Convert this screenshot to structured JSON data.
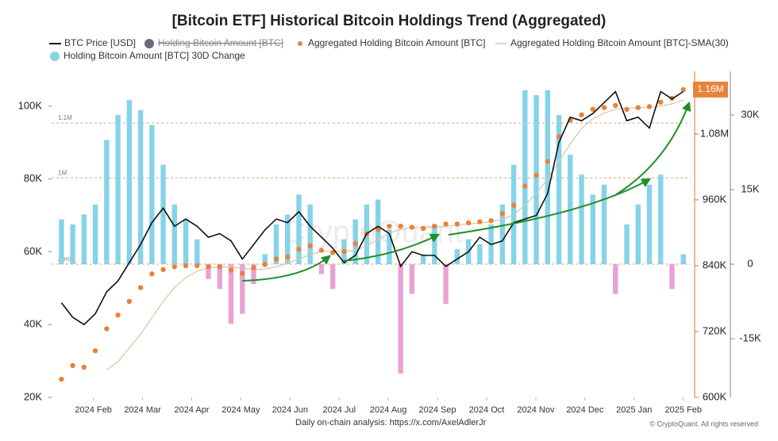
{
  "chart_data": {
    "type": "combo",
    "title": "[Bitcoin ETF] Historical Bitcoin Holdings Trend (Aggregated)",
    "x": [
      0.35,
      0.58,
      0.81,
      1.04,
      1.27,
      1.5,
      1.73,
      1.96,
      2.19,
      2.42,
      2.65,
      2.88,
      3.11,
      3.34,
      3.57,
      3.8,
      4.03,
      4.26,
      4.49,
      4.72,
      4.95,
      5.18,
      5.41,
      5.64,
      5.87,
      6.1,
      6.33,
      6.56,
      6.79,
      7.02,
      7.25,
      7.48,
      7.71,
      7.94,
      8.17,
      8.4,
      8.63,
      8.86,
      9.09,
      9.32,
      9.55,
      9.78,
      10.01,
      10.24,
      10.47,
      10.7,
      10.93,
      11.16,
      11.39,
      11.62,
      11.85,
      12.08,
      12.31,
      12.54,
      12.77,
      13.0
    ],
    "xlim": [
      0.15,
      13.15
    ],
    "xticks": [
      {
        "value": 1,
        "label": "2024 Feb"
      },
      {
        "value": 2,
        "label": "2024 Mar"
      },
      {
        "value": 3,
        "label": "2024 Apr"
      },
      {
        "value": 4,
        "label": "2024 May"
      },
      {
        "value": 5,
        "label": "2024 Jun"
      },
      {
        "value": 6,
        "label": "2024 Jul"
      },
      {
        "value": 7,
        "label": "2024 Aug"
      },
      {
        "value": 8,
        "label": "2024 Sep"
      },
      {
        "value": 9,
        "label": "2024 Oct"
      },
      {
        "value": 10,
        "label": "2024 Nov"
      },
      {
        "value": 11,
        "label": "2024 Dec"
      },
      {
        "value": 12,
        "label": "2025 Jan"
      },
      {
        "value": 13,
        "label": "2025 Feb"
      }
    ],
    "ylim": [
      20000,
      110000
    ],
    "yticks": [
      {
        "value": 20000,
        "label": "20K"
      },
      {
        "value": 40000,
        "label": "40K"
      },
      {
        "value": 60000,
        "label": "60K"
      },
      {
        "value": 80000,
        "label": "80K"
      },
      {
        "value": 100000,
        "label": "100K"
      }
    ],
    "y2lim": [
      600000,
      1197000
    ],
    "y2ticks": [
      {
        "value": 600000,
        "label": "600K"
      },
      {
        "value": 720000,
        "label": "720K"
      },
      {
        "value": 840000,
        "label": "840K"
      },
      {
        "value": 960000,
        "label": "960K"
      },
      {
        "value": 1080000,
        "label": "1.08M"
      }
    ],
    "y3lim": [
      -26800,
      39100
    ],
    "y3ticks": [
      {
        "value": -15000,
        "label": "-15K"
      },
      0,
      {
        "value": 15000,
        "label": "15K"
      },
      {
        "value": 30000,
        "label": "30K"
      }
    ],
    "reference_lines": [
      {
        "value": 1100000,
        "label": "1.1M",
        "axis": "y2"
      },
      {
        "value": 1000000,
        "label": "1M",
        "axis": "y2"
      },
      {
        "value": 0,
        "label": "Zero",
        "axis": "y3"
      }
    ],
    "series": [
      {
        "name": "Holding Bitcoin Amount [BTC] 30D Change",
        "type": "bar",
        "axis": "y3",
        "color": "#86d3e8",
        "negative_color": "#e9a2d4",
        "values": [
          9000,
          8000,
          10000,
          12000,
          25000,
          30000,
          33000,
          31000,
          28000,
          20000,
          12000,
          9000,
          5000,
          -3000,
          -5000,
          -12000,
          -10000,
          -4000,
          2000,
          8000,
          10000,
          14000,
          12000,
          -2000,
          -5000,
          5000,
          9000,
          12000,
          13000,
          7000,
          -22000,
          -6000,
          2000,
          8000,
          -8000,
          3000,
          5000,
          4000,
          8000,
          12000,
          20000,
          35000,
          34000,
          35000,
          30000,
          22000,
          18000,
          14000,
          16000,
          -6000,
          8000,
          12000,
          16000,
          18000,
          -5000,
          2000
        ]
      },
      {
        "name": "Aggregated Holding Bitcoin Amount [BTC]-SMA(30)",
        "type": "line",
        "axis": "y2",
        "color": "#d8c6a4",
        "values": [
          null,
          null,
          null,
          null,
          650000,
          665000,
          690000,
          715000,
          745000,
          775000,
          800000,
          818000,
          830000,
          836000,
          838000,
          838000,
          835000,
          833000,
          834000,
          838000,
          845000,
          852000,
          860000,
          866000,
          867000,
          866000,
          868000,
          876000,
          888000,
          900000,
          906000,
          909000,
          910000,
          910000,
          912000,
          914000,
          916000,
          918000,
          920000,
          924000,
          933000,
          950000,
          972000,
          998000,
          1030000,
          1062000,
          1090000,
          1108000,
          1118000,
          1125000,
          1127000,
          1128000,
          1128000,
          1131000,
          1135000,
          1142000
        ]
      },
      {
        "name": "Aggregated Holding Bitcoin Amount [BTC]",
        "type": "dots",
        "axis": "y2",
        "color": "#e8823a",
        "last_value_label": "1.16M",
        "values": [
          633000,
          658000,
          655000,
          685000,
          725000,
          750000,
          775000,
          800000,
          825000,
          833000,
          838000,
          840000,
          840000,
          838000,
          838000,
          832000,
          826000,
          836000,
          842000,
          852000,
          856000,
          870000,
          876000,
          868000,
          864000,
          866000,
          880000,
          898000,
          906000,
          912000,
          912000,
          910000,
          908000,
          912000,
          916000,
          916000,
          918000,
          920000,
          922000,
          935000,
          950000,
          985000,
          1005000,
          1030000,
          1075000,
          1105000,
          1115000,
          1125000,
          1128000,
          1132000,
          1125000,
          1128000,
          1130000,
          1138000,
          1145000,
          1161000
        ]
      },
      {
        "name": "BTC Price [USD]",
        "type": "line",
        "axis": "y",
        "color": "#111111",
        "values": [
          46000,
          42000,
          40000,
          43000,
          49000,
          52000,
          57000,
          62000,
          68000,
          72000,
          67000,
          69000,
          67000,
          64000,
          65000,
          63000,
          58000,
          62000,
          66000,
          69000,
          68000,
          71000,
          67000,
          64000,
          61000,
          57000,
          59000,
          65000,
          67000,
          65000,
          56000,
          60000,
          59000,
          59000,
          56000,
          58000,
          60000,
          64000,
          62000,
          63000,
          68000,
          69000,
          70000,
          76000,
          90000,
          97000,
          96000,
          98000,
          101000,
          104000,
          96000,
          97000,
          94000,
          104000,
          102000,
          104000
        ]
      }
    ],
    "hidden_series": [
      {
        "name": "Holding Bitcoin Amount [BTC]",
        "color": "#6b6b78"
      }
    ],
    "watermark": "CryptoQuant",
    "footer": "Daily on-chain analysis: https://x.com/AxelAdlerJr",
    "copyright": "© CryptoQuant. All rights reserved"
  }
}
